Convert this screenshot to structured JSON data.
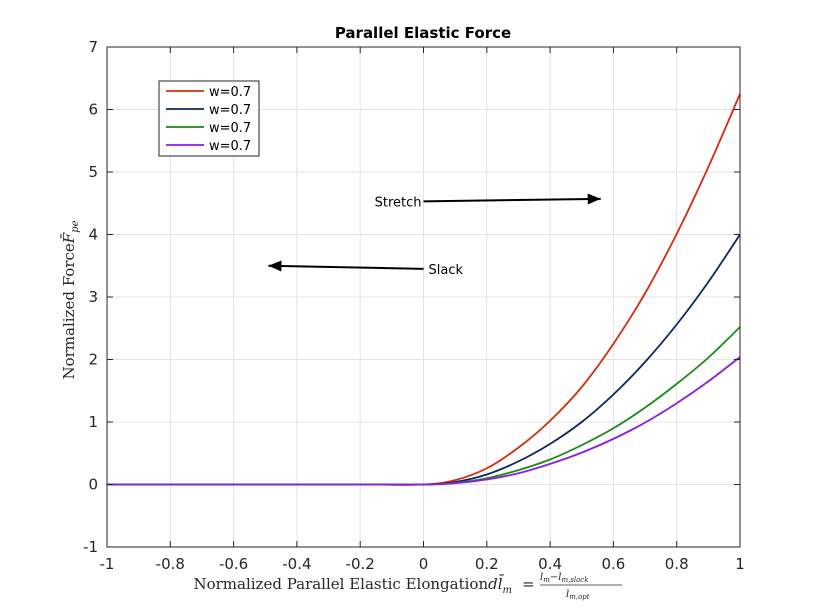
{
  "chart_data": {
    "type": "line",
    "title": "Parallel Elastic Force",
    "xlabel": {
      "main": "Normalized Parallel Elastic Elongation",
      "symbol": "dl̄",
      "symbol_sub": "m",
      "eq": "=",
      "numerator": "l",
      "numerator_sub": "m",
      "minus": "−",
      "numerator2": "l",
      "numerator2_sub": "m,slack",
      "denominator": "l",
      "denominator_sub": "m,opt"
    },
    "ylabel": {
      "main": "Normalized Force",
      "symbol": "F̄",
      "symbol_sub": "pe"
    },
    "xlim": [
      -1,
      1
    ],
    "ylim": [
      -1,
      7
    ],
    "xticks": [
      -1,
      -0.8,
      -0.6,
      -0.4,
      -0.2,
      0,
      0.2,
      0.4,
      0.6,
      0.8,
      1
    ],
    "xtick_labels": [
      "-1",
      "-0.8",
      "-0.6",
      "-0.4",
      "-0.2",
      "0",
      "0.2",
      "0.4",
      "0.6",
      "0.8",
      "1"
    ],
    "yticks": [
      -1,
      0,
      1,
      2,
      3,
      4,
      5,
      6,
      7
    ],
    "ytick_labels": [
      "-1",
      "0",
      "1",
      "2",
      "3",
      "4",
      "5",
      "6",
      "7"
    ],
    "grid": true,
    "legend_position": "top-left",
    "x": [
      -1,
      -0.8,
      -0.6,
      -0.4,
      -0.2,
      0,
      0.1,
      0.2,
      0.3,
      0.4,
      0.5,
      0.6,
      0.7,
      0.8,
      0.9,
      1.0
    ],
    "series": [
      {
        "name": "w=0.7",
        "color": "#d62b0e",
        "values": [
          0,
          0,
          0,
          0,
          0,
          0,
          0.07,
          0.26,
          0.59,
          1.02,
          1.56,
          2.25,
          3.06,
          4.01,
          5.08,
          6.25
        ]
      },
      {
        "name": "w=0.7",
        "color": "#0d2660",
        "values": [
          0,
          0,
          0,
          0,
          0,
          0,
          0.04,
          0.16,
          0.37,
          0.65,
          1.0,
          1.44,
          1.96,
          2.56,
          3.24,
          4.0
        ]
      },
      {
        "name": "w=0.7",
        "color": "#1a8a18",
        "values": [
          0,
          0,
          0,
          0,
          0,
          0,
          0.025,
          0.1,
          0.23,
          0.4,
          0.63,
          0.9,
          1.23,
          1.61,
          2.03,
          2.52
        ]
      },
      {
        "name": "w=0.7",
        "color": "#8a1de8",
        "values": [
          0,
          0,
          0,
          0,
          0,
          0,
          0.02,
          0.08,
          0.18,
          0.33,
          0.51,
          0.73,
          0.99,
          1.3,
          1.65,
          2.04
        ]
      }
    ],
    "annotations": [
      {
        "text": "Stretch",
        "arrow_from": [
          0,
          4.53
        ],
        "arrow_to": [
          0.56,
          4.57
        ]
      },
      {
        "text": "Slack",
        "arrow_from": [
          0,
          3.45
        ],
        "arrow_to": [
          -0.49,
          3.5
        ]
      }
    ]
  }
}
